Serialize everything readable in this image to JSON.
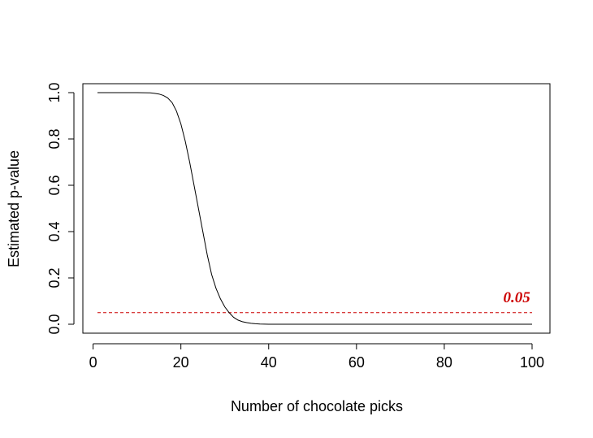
{
  "chart_data": {
    "type": "line",
    "title": "",
    "xlabel": "Number of chocolate picks",
    "ylabel": "Estimated p-value",
    "xlim": [
      1,
      100
    ],
    "ylim": [
      0,
      1
    ],
    "x_ticks": [
      0,
      20,
      40,
      60,
      80,
      100
    ],
    "x_tick_labels": [
      "0",
      "20",
      "40",
      "60",
      "80",
      "100"
    ],
    "y_ticks": [
      0,
      0.2,
      0.4,
      0.6,
      0.8,
      1
    ],
    "y_tick_labels": [
      "0.0",
      "0.2",
      "0.4",
      "0.6",
      "0.8",
      "1.0"
    ],
    "grid": false,
    "series": [
      {
        "color": "#000000",
        "x": [
          1,
          5,
          10,
          13,
          14,
          15,
          16,
          17,
          18,
          19,
          20,
          21,
          22,
          23,
          24,
          25,
          26,
          27,
          28,
          29,
          30,
          31,
          32,
          33,
          34,
          35,
          36,
          37,
          38,
          39,
          40,
          45,
          50,
          60,
          70,
          80,
          90,
          100
        ],
        "y": [
          1.0,
          1.0,
          1.0,
          0.999,
          0.997,
          0.994,
          0.988,
          0.977,
          0.957,
          0.92,
          0.865,
          0.79,
          0.7,
          0.6,
          0.5,
          0.4,
          0.3,
          0.215,
          0.155,
          0.11,
          0.075,
          0.05,
          0.03,
          0.018,
          0.011,
          0.007,
          0.004,
          0.002,
          0.001,
          0.0005,
          0.0002,
          0.0,
          0.0,
          0.0,
          0.0,
          0.0,
          0.0,
          0.0
        ]
      }
    ],
    "reference_line": {
      "y": 0.05,
      "style": "dashed",
      "color": "#cc0000"
    },
    "annotations": [
      {
        "text": "0.05",
        "x": 96.5,
        "y": 0.12,
        "color": "#cc0000"
      }
    ]
  }
}
